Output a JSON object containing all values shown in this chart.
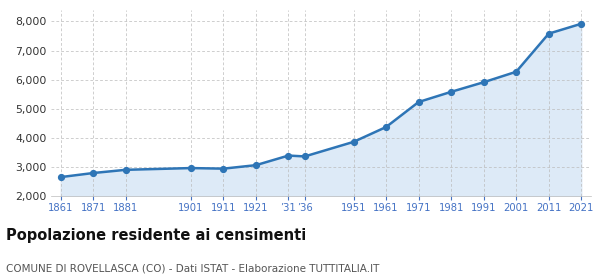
{
  "years": [
    1861,
    1871,
    1881,
    1901,
    1911,
    1921,
    1931,
    1936,
    1951,
    1961,
    1971,
    1981,
    1991,
    2001,
    2011,
    2021
  ],
  "population": [
    2650,
    2790,
    2900,
    2960,
    2940,
    3060,
    3390,
    3360,
    3860,
    4370,
    5230,
    5580,
    5910,
    6270,
    7580,
    7920
  ],
  "line_color": "#2e75b6",
  "fill_color": "#ddeaf7",
  "marker_color": "#2e75b6",
  "background_color": "#ffffff",
  "grid_color": "#bbbbbb",
  "title": "Popolazione residente ai censimenti",
  "subtitle": "COMUNE DI ROVELLASCA (CO) - Dati ISTAT - Elaborazione TUTTITALIA.IT",
  "ylim": [
    2000,
    8400
  ],
  "yticks": [
    2000,
    3000,
    4000,
    5000,
    6000,
    7000,
    8000
  ],
  "tick_color": "#4472c4",
  "title_fontsize": 10.5,
  "subtitle_fontsize": 7.5,
  "x_positions": [
    1861,
    1871,
    1881,
    1901,
    1911,
    1921,
    1931,
    1936,
    1951,
    1961,
    1971,
    1981,
    1991,
    2001,
    2011,
    2021
  ],
  "x_labels": [
    "1861",
    "1871",
    "1881",
    "1901",
    "1911",
    "1921",
    "’31",
    "’36",
    "1951",
    "1961",
    "1971",
    "1981",
    "1991",
    "2001",
    "2011",
    "2021"
  ]
}
